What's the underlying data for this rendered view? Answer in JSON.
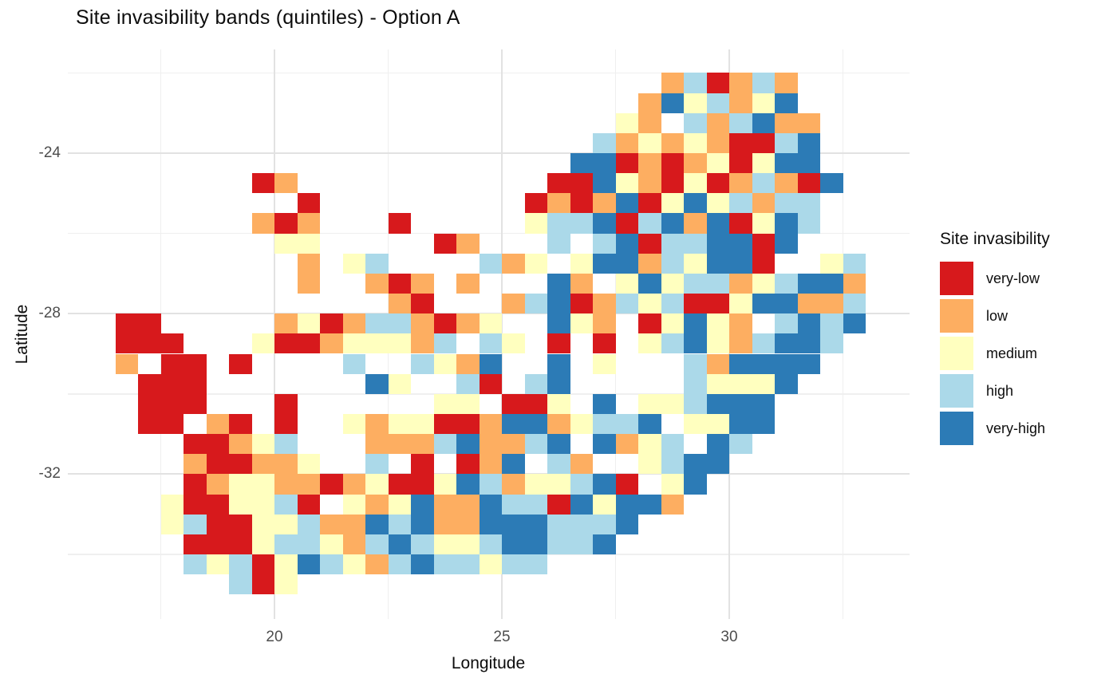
{
  "title": "Site invasibility bands (quintiles) - Option A",
  "axes": {
    "x": {
      "label": "Longitude",
      "ticks": [
        {
          "text": "20",
          "value": 20
        },
        {
          "text": "25",
          "value": 25
        },
        {
          "text": "30",
          "value": 30
        }
      ],
      "gridlines_major": [
        20,
        25,
        30
      ],
      "gridlines_minor": [
        17.5,
        22.5,
        27.5,
        32.5
      ]
    },
    "y": {
      "label": "Latitude",
      "ticks": [
        {
          "text": "-24",
          "value": -24
        },
        {
          "text": "-28",
          "value": -28
        },
        {
          "text": "-32",
          "value": -32
        }
      ],
      "gridlines_major": [
        -24,
        -28,
        -32
      ],
      "gridlines_minor": [
        -22,
        -26,
        -30,
        -34
      ]
    }
  },
  "legend": {
    "title": "Site invasibility",
    "items": [
      {
        "label": "very-low",
        "color": "#d7191c",
        "code": "R"
      },
      {
        "label": "low",
        "color": "#fdae61",
        "code": "O"
      },
      {
        "label": "medium",
        "color": "#ffffbf",
        "code": "Y"
      },
      {
        "label": "high",
        "color": "#abd9e9",
        "code": "L"
      },
      {
        "label": "very-high",
        "color": "#2c7bb6",
        "code": "B"
      }
    ]
  },
  "chart_data": {
    "type": "heatmap",
    "title": "Site invasibility bands (quintiles) - Option A",
    "xlabel": "Longitude",
    "ylabel": "Latitude",
    "x_ticks": [
      20,
      25,
      30
    ],
    "y_ticks": [
      -24,
      -28,
      -32
    ],
    "x_range": [
      15.5,
      34.0
    ],
    "y_range": [
      -35.7,
      -21.4
    ],
    "legend_position": "right",
    "grid_on": true,
    "categories": [
      "very-low",
      "low",
      "medium",
      "high",
      "very-high"
    ],
    "colors": {
      "very-low": "#d7191c",
      "low": "#fdae61",
      "medium": "#ffffbf",
      "high": "#abd9e9",
      "very-high": "#2c7bb6"
    },
    "grid": {
      "lon_start": 16.0,
      "lat_start": -22.0,
      "cell_deg": 0.5,
      "cols": 36,
      "row_order": "top-to-bottom (lat -22.0 southward), codes per 0.5-deg cell",
      "code_map": {
        ".": "empty",
        "R": "very-low",
        "O": "low",
        "Y": "medium",
        "L": "high",
        "B": "very-high"
      },
      "rows": [
        ".........................OLROLO.....",
        "........................OBYLOYB.....",
        ".......................YO.LOLBOO....",
        "......................LOYOYORRLB....",
        ".....................BBROROYRYBB....",
        ".......RO...........RRBYORYROLORB...",
        ".........R.........ROROBRYBYLOLL....",
        ".......ORO...R.....YLLBRLBOBRYBL....",
        "........YY.....RO...L.LBRLLBBRB.....",
        ".........O.YL....LOY.YBBOLYBBR..YL..",
        ".........O..ORO.O...BO.YBYLLOYLBBO..",
        ".............OR...OLBROLYLRRYBBOOL..",
        ".RR.....OYROLLOROY..BYO.RYBYO.LBLB..",
        ".RRR...YRROYYYOL.LY.R.R.YLBYOLBBL...",
        ".O.RR.R....L..LYOB..B.Y...LOBBBB....",
        "..RRR.......BY..LR.LB.....LYYYB.....",
        "..RRR...R......YY.RRY.B.YYLBBB......",
        "..RR.OR.R..YOYYRROBBOYLLB.YYBB......",
        "....RROYL...OOOLBOOLB.BOYL.BL.......",
        "....ORROOY..L.R.ROB.LO..YLBB........",
        "....ROYYOOROYRRYBLOYYLBR.YB.........",
        "...YRRYYLR.YOYBOOBLLRBYBBO..........",
        "...YLRRYYLOOBLBOOBBBLLLB............",
        "....RRRYLLYOLBLYYLBBLLB.............",
        "....LYLRYBLYOLBLLYLL................",
        "......LRY..........................."
      ]
    }
  }
}
